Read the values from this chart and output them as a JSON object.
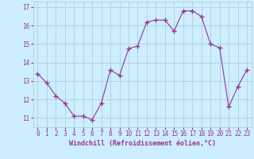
{
  "x": [
    0,
    1,
    2,
    3,
    4,
    5,
    6,
    7,
    8,
    9,
    10,
    11,
    12,
    13,
    14,
    15,
    16,
    17,
    18,
    19,
    20,
    21,
    22,
    23
  ],
  "y": [
    13.4,
    12.9,
    12.2,
    11.8,
    11.1,
    11.1,
    10.9,
    11.8,
    13.6,
    13.3,
    14.75,
    14.9,
    16.2,
    16.3,
    16.3,
    15.7,
    16.8,
    16.8,
    16.5,
    15.0,
    14.8,
    11.6,
    12.7,
    13.6
  ],
  "line_color": "#993399",
  "marker": "+",
  "marker_size": 4,
  "bg_color": "#cceeff",
  "grid_color": "#aacccc",
  "xlabel": "Windchill (Refroidissement éolien,°C)",
  "ylabel": "",
  "ylim": [
    10.5,
    17.3
  ],
  "xlim": [
    -0.5,
    23.5
  ],
  "yticks": [
    11,
    12,
    13,
    14,
    15,
    16,
    17
  ],
  "xticks": [
    0,
    1,
    2,
    3,
    4,
    5,
    6,
    7,
    8,
    9,
    10,
    11,
    12,
    13,
    14,
    15,
    16,
    17,
    18,
    19,
    20,
    21,
    22,
    23
  ],
  "axis_color": "#993399",
  "font_family": "monospace",
  "tick_fontsize": 5.5,
  "xlabel_fontsize": 6.0,
  "linewidth": 0.8
}
